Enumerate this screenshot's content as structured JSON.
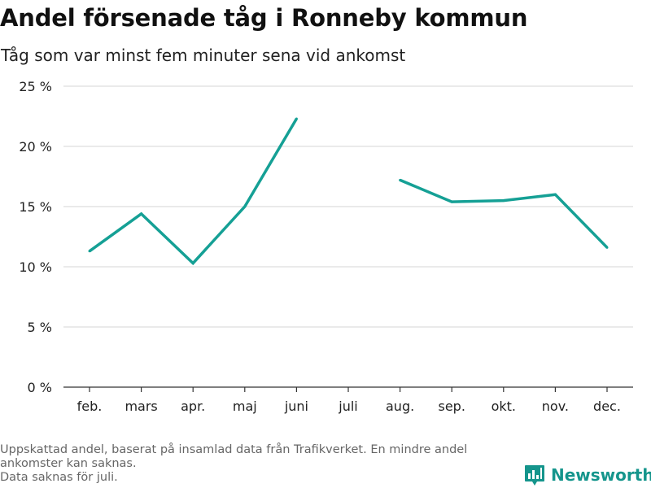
{
  "title": "Andel försenade tåg i Ronneby kommun",
  "subtitle": "Tåg som var minst fem minuter sena vid ankomst",
  "footnote": {
    "line1": "Uppskattad andel, baserat på insamlad data från Trafikverket. En mindre andel",
    "line2": "ankomster kan saknas.",
    "line3": "Data saknas för juli."
  },
  "brand": {
    "name": "Newsworthy",
    "icon": "bar-chart-logo-icon",
    "color": "#15958c"
  },
  "chart_data": {
    "type": "line",
    "categories": [
      "feb.",
      "mars",
      "apr.",
      "maj",
      "juni",
      "juli",
      "aug.",
      "sep.",
      "okt.",
      "nov.",
      "dec."
    ],
    "series": [
      {
        "values": [
          11.3,
          14.4,
          10.3,
          15.0,
          22.3,
          null,
          17.2,
          15.4,
          15.5,
          16.0,
          11.6
        ],
        "color": "#15a095"
      }
    ],
    "ylim": [
      0,
      25
    ],
    "yticks": [
      0,
      5,
      10,
      15,
      20,
      25
    ],
    "ytick_labels": [
      "0 %",
      "5 %",
      "10 %",
      "15 %",
      "20 %",
      "25 %"
    ],
    "grid": true,
    "legend": "none"
  }
}
